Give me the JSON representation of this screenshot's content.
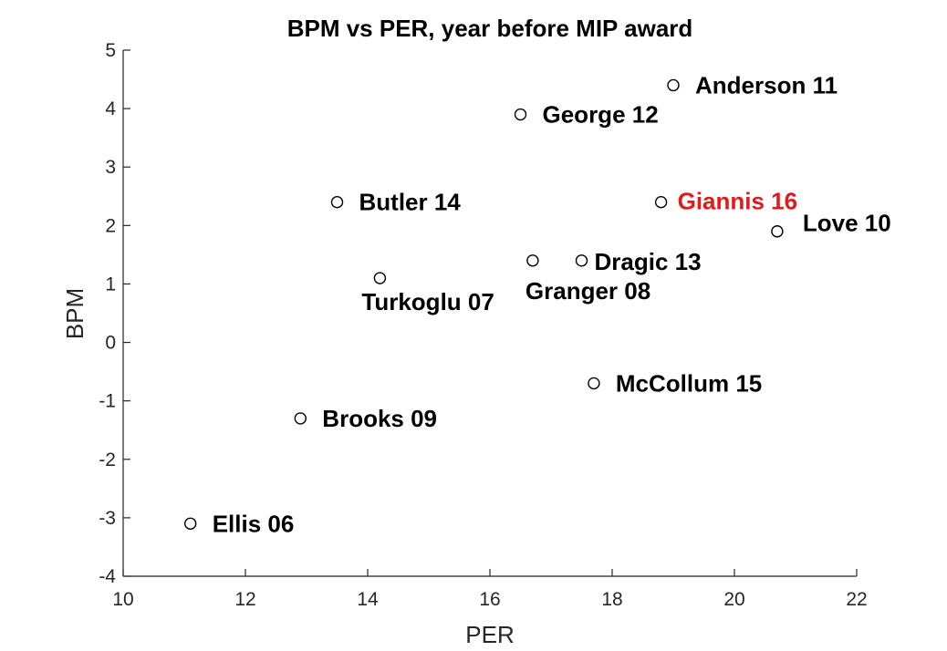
{
  "chart_data": {
    "type": "scatter",
    "title": "BPM vs PER, year before MIP award",
    "xlabel": "PER",
    "ylabel": "BPM",
    "xlim": [
      10,
      22
    ],
    "ylim": [
      -4,
      5
    ],
    "xticks": [
      "10",
      "12",
      "14",
      "16",
      "18",
      "20",
      "22"
    ],
    "yticks": [
      "5",
      "4",
      "3",
      "2",
      "1",
      "0",
      "-1",
      "-2",
      "-3",
      "-4"
    ],
    "grid": false,
    "legend": "none",
    "marker": "open-circle",
    "points": [
      {
        "label": "Ellis 06",
        "x": 11.1,
        "y": -3.1,
        "color": "#000000"
      },
      {
        "label": "Turkoglu 07",
        "x": 14.2,
        "y": 1.1,
        "color": "#000000"
      },
      {
        "label": "Granger 08",
        "x": 16.7,
        "y": 1.4,
        "color": "#000000"
      },
      {
        "label": "Brooks 09",
        "x": 12.9,
        "y": -1.3,
        "color": "#000000"
      },
      {
        "label": "Love 10",
        "x": 20.7,
        "y": 1.9,
        "color": "#000000"
      },
      {
        "label": "Anderson 11",
        "x": 19.0,
        "y": 4.4,
        "color": "#000000"
      },
      {
        "label": "George 12",
        "x": 16.5,
        "y": 3.9,
        "color": "#000000"
      },
      {
        "label": "Dragic 13",
        "x": 17.5,
        "y": 1.4,
        "color": "#000000"
      },
      {
        "label": "Butler 14",
        "x": 13.5,
        "y": 2.4,
        "color": "#000000"
      },
      {
        "label": "McCollum 15",
        "x": 17.7,
        "y": -0.7,
        "color": "#000000"
      },
      {
        "label": "Giannis 16",
        "x": 18.8,
        "y": 2.4,
        "color": "#e31a1c"
      }
    ]
  }
}
